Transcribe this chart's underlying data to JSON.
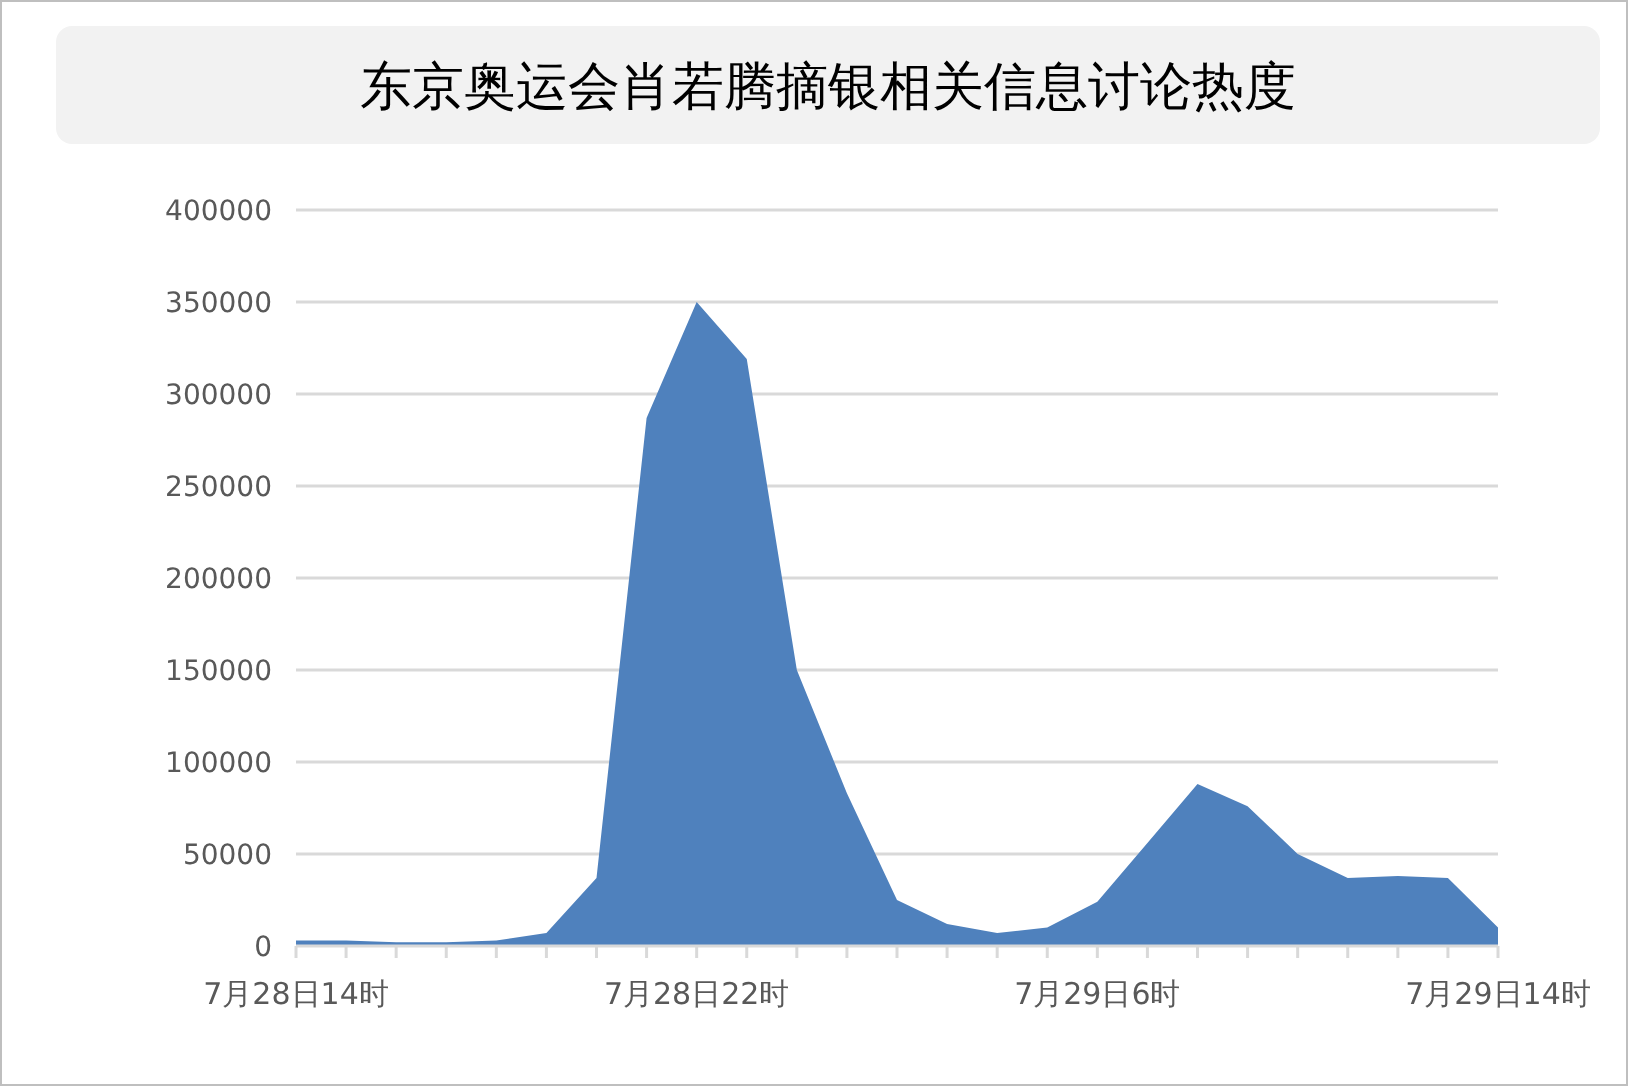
{
  "chart_data": {
    "type": "area",
    "title": "东京奥运会肖若腾摘银相关信息讨论热度",
    "categories": [
      "7月28日14时",
      null,
      null,
      null,
      null,
      null,
      null,
      null,
      "7月28日22时",
      null,
      null,
      null,
      null,
      null,
      null,
      null,
      "7月29日6时",
      null,
      null,
      null,
      null,
      null,
      null,
      null,
      "7月29日14时"
    ],
    "series": [
      {
        "color": "#4f81bd",
        "values": [
          3000,
          3000,
          2000,
          2000,
          3000,
          7000,
          37000,
          287000,
          350000,
          319000,
          150000,
          83000,
          25000,
          12000,
          7000,
          10000,
          24000,
          56000,
          88000,
          76000,
          50000,
          37000,
          38000,
          37000,
          10000
        ]
      }
    ],
    "ylim": [
      0,
      400000
    ],
    "yticks": [
      0,
      50000,
      100000,
      150000,
      200000,
      250000,
      300000,
      350000,
      400000
    ],
    "grid": "y"
  }
}
